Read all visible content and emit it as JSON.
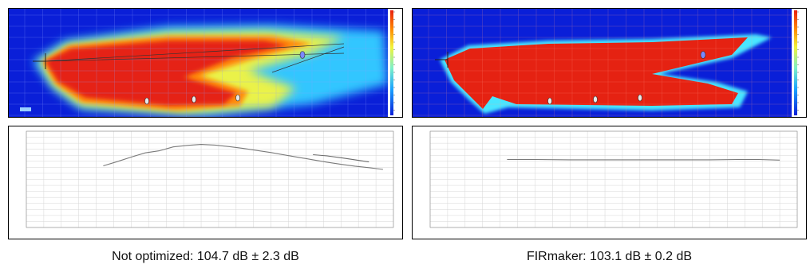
{
  "chart_data": [
    {
      "type": "heatmap",
      "panel": "not-optimized",
      "colorscale": [
        "#0a1fd8",
        "#1aa3ff",
        "#7df0c8",
        "#f2f23a",
        "#ff8a00",
        "#e82010"
      ],
      "mic_markers": 4
    },
    {
      "type": "line",
      "panel": "not-optimized",
      "title": "",
      "xlabel": "",
      "ylabel": "",
      "xlim": [
        0,
        105
      ],
      "ylim": [
        80,
        112
      ],
      "series": [
        {
          "x": [
            22,
            26,
            30,
            34,
            38,
            42,
            46,
            50,
            54,
            58,
            62,
            66,
            70,
            74,
            78,
            82,
            86,
            90,
            94,
            98,
            102
          ],
          "y": [
            100.5,
            101.9,
            103.4,
            104.8,
            105.5,
            106.8,
            107.3,
            107.6,
            107.4,
            106.9,
            106.3,
            105.6,
            104.9,
            104.1,
            103.3,
            102.5,
            101.7,
            101.0,
            100.4,
            99.9,
            99.3
          ]
        },
        {
          "x": [
            82,
            86,
            90,
            94,
            98
          ],
          "y": [
            104.2,
            103.8,
            103.2,
            102.5,
            101.8
          ]
        }
      ]
    },
    {
      "type": "heatmap",
      "panel": "firmaker",
      "colorscale": [
        "#0a1fd8",
        "#1aa3ff",
        "#7df0c8",
        "#f2f23a",
        "#ff8a00",
        "#e82010"
      ],
      "mic_markers": 4
    },
    {
      "type": "line",
      "panel": "firmaker",
      "title": "",
      "xlabel": "",
      "ylabel": "",
      "xlim": [
        0,
        105
      ],
      "ylim": [
        80,
        112
      ],
      "series": [
        {
          "x": [
            22,
            30,
            40,
            50,
            60,
            70,
            80,
            88,
            94,
            100
          ],
          "y": [
            102.6,
            102.6,
            102.5,
            102.5,
            102.5,
            102.5,
            102.5,
            102.6,
            102.6,
            102.4
          ]
        }
      ]
    }
  ],
  "captions": {
    "left": "Not optimized: 104.7 dB ± 2.3 dB",
    "right": "FIRmaker: 103.1 dB ± 0.2 dB"
  }
}
